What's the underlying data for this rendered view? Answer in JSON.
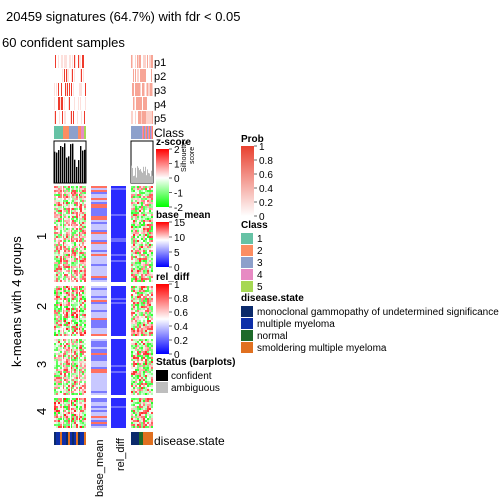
{
  "title": "20459 signatures (64.7%) with fdr < 0.05",
  "subtitle": "60 confident samples",
  "row_axis_label": "k-means with 4 groups",
  "row_groups": [
    "1",
    "2",
    "3",
    "4"
  ],
  "prob_rows": [
    "p1",
    "p2",
    "p3",
    "p4",
    "p5"
  ],
  "class_label": "Class",
  "silhouette_label": "Silhouette\nscore",
  "bottom_label": "disease.state",
  "col_labels": {
    "base_mean": "base_mean",
    "rel_diff": "rel_diff"
  },
  "colors": {
    "zscore_high": "#ff0000",
    "zscore_mid": "#ffffff",
    "zscore_low": "#00ff00",
    "base_mean_high": "#ff0000",
    "base_mean_low": "#0000ff",
    "prob_high": "#e8402f",
    "class": [
      "#66c2a5",
      "#fc8d62",
      "#8da0cb",
      "#e78ac3",
      "#a6d854"
    ],
    "disease": [
      "#0b2a6b",
      "#0d2ea8",
      "#1e6a2a",
      "#e07020"
    ]
  },
  "legends": {
    "zscore": {
      "title": "z-score",
      "ticks": [
        "2",
        "1",
        "0",
        "-1",
        "-2"
      ]
    },
    "base_mean": {
      "title": "base_mean",
      "ticks": [
        "15",
        "10",
        "5",
        "0"
      ]
    },
    "rel_diff": {
      "title": "rel_diff",
      "ticks": [
        "1",
        "0.8",
        "0.6",
        "0.4",
        "0.2",
        "0"
      ]
    },
    "status": {
      "title": "Status (barplots)",
      "items": [
        "confident",
        "ambiguous"
      ]
    },
    "prob": {
      "title": "Prob",
      "ticks": [
        "1",
        "0.8",
        "0.6",
        "0.4",
        "0.2",
        "0"
      ]
    },
    "class": {
      "title": "Class",
      "items": [
        "1",
        "2",
        "3",
        "4",
        "5"
      ]
    },
    "disease_state": {
      "title": "disease.state",
      "items": [
        "monoclonal gammopathy of undetermined significance",
        "multiple myeloma",
        "normal",
        "smoldering multiple myeloma"
      ]
    }
  },
  "chart_data": {
    "type": "heatmap",
    "title": "20459 signatures (64.7%) with fdr < 0.05",
    "subtitle": "60 confident samples",
    "row_split": {
      "label": "k-means with 4 groups",
      "groups": [
        "1",
        "2",
        "3",
        "4"
      ]
    },
    "zscore_range": [
      -2,
      2
    ],
    "base_mean_range": [
      0,
      15
    ],
    "rel_diff_range": [
      0,
      1
    ],
    "prob_range": [
      0,
      1
    ]
  }
}
